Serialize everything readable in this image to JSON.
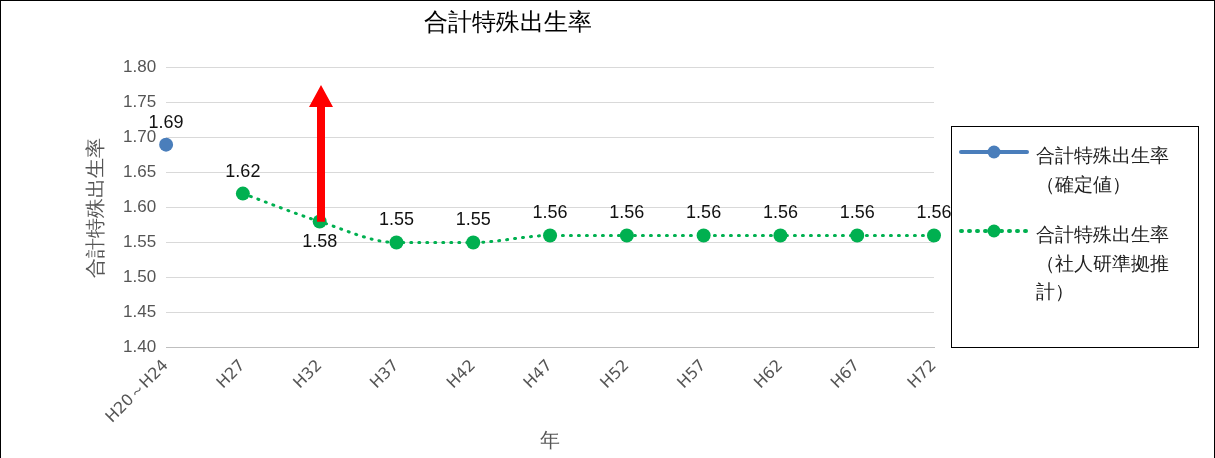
{
  "chart_data": {
    "type": "line",
    "title": "合計特殊出生率",
    "xlabel": "年",
    "ylabel": "合計特殊出生率",
    "categories": [
      "H20～H24",
      "H27",
      "H32",
      "H37",
      "H42",
      "H47",
      "H52",
      "H57",
      "H62",
      "H67",
      "H72"
    ],
    "ylim": [
      1.4,
      1.8
    ],
    "yticks": [
      {
        "value": 1.4,
        "label": "1.40"
      },
      {
        "value": 1.45,
        "label": "1.45"
      },
      {
        "value": 1.5,
        "label": "1.50"
      },
      {
        "value": 1.55,
        "label": "1.55"
      },
      {
        "value": 1.6,
        "label": "1.60"
      },
      {
        "value": 1.65,
        "label": "1.65"
      },
      {
        "value": 1.7,
        "label": "1.70"
      },
      {
        "value": 1.75,
        "label": "1.75"
      },
      {
        "value": 1.8,
        "label": "1.80"
      }
    ],
    "grid": "y",
    "legend": "right",
    "marker": "circle",
    "data_labels": true,
    "series": [
      {
        "name": "合計特殊出生率（確定値）",
        "color": "#4a7ebb",
        "line_style": "solid",
        "values": [
          1.69,
          null,
          null,
          null,
          null,
          null,
          null,
          null,
          null,
          null,
          null
        ]
      },
      {
        "name": "合計特殊出生率（社人研準拠推計）",
        "color": "#00b050",
        "line_style": "dotted",
        "values": [
          null,
          1.62,
          1.58,
          1.55,
          1.55,
          1.56,
          1.56,
          1.56,
          1.56,
          1.56,
          1.56
        ]
      }
    ]
  }
}
